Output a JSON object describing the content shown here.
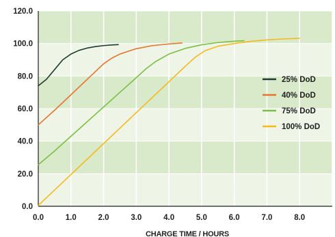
{
  "chart_data": {
    "type": "line",
    "xlabel": "CHARGE TIME / HOURS",
    "ylabel": "",
    "xlim": [
      0,
      9
    ],
    "ylim": [
      0,
      120
    ],
    "x_ticks": [
      "0.0",
      "1.0",
      "2.0",
      "3.0",
      "4.0",
      "5.0",
      "6.0",
      "7.0",
      "8.0"
    ],
    "y_ticks": [
      "0.0",
      "20.0",
      "40.0",
      "60.0",
      "80.0",
      "100.0",
      "120.0"
    ],
    "grid": true,
    "legend_position": "right",
    "series": [
      {
        "name": "25% DoD",
        "color": "#1d3a33",
        "points": [
          [
            0.0,
            74
          ],
          [
            0.25,
            78
          ],
          [
            0.5,
            84
          ],
          [
            0.75,
            90
          ],
          [
            1.0,
            93.5
          ],
          [
            1.25,
            95.8
          ],
          [
            1.5,
            97.2
          ],
          [
            1.75,
            98.1
          ],
          [
            2.0,
            98.7
          ],
          [
            2.25,
            99.1
          ],
          [
            2.45,
            99.3
          ]
        ]
      },
      {
        "name": "40% DoD",
        "color": "#e8732c",
        "points": [
          [
            0.0,
            50
          ],
          [
            0.5,
            59
          ],
          [
            1.0,
            68.5
          ],
          [
            1.5,
            78
          ],
          [
            2.0,
            87.5
          ],
          [
            2.25,
            91
          ],
          [
            2.5,
            93.5
          ],
          [
            3.0,
            96.8
          ],
          [
            3.5,
            98.7
          ],
          [
            4.0,
            99.7
          ],
          [
            4.4,
            100.3
          ]
        ]
      },
      {
        "name": "75% DoD",
        "color": "#7ac043",
        "points": [
          [
            0.0,
            25.5
          ],
          [
            0.5,
            34
          ],
          [
            1.0,
            43
          ],
          [
            1.5,
            52
          ],
          [
            2.0,
            61
          ],
          [
            2.5,
            70
          ],
          [
            3.0,
            79
          ],
          [
            3.3,
            84.5
          ],
          [
            3.6,
            89
          ],
          [
            4.0,
            93.5
          ],
          [
            4.5,
            97
          ],
          [
            5.0,
            99.2
          ],
          [
            5.5,
            100.6
          ],
          [
            6.0,
            101.4
          ],
          [
            6.3,
            101.7
          ]
        ]
      },
      {
        "name": "100% DoD",
        "color": "#f6b81c",
        "points": [
          [
            0.0,
            0.5
          ],
          [
            0.5,
            10
          ],
          [
            1.0,
            19.5
          ],
          [
            1.5,
            29
          ],
          [
            2.0,
            38.5
          ],
          [
            2.5,
            48
          ],
          [
            3.0,
            57.5
          ],
          [
            3.5,
            67
          ],
          [
            4.0,
            76.5
          ],
          [
            4.5,
            86
          ],
          [
            4.8,
            91.5
          ],
          [
            5.1,
            95.5
          ],
          [
            5.5,
            98.3
          ],
          [
            6.0,
            100
          ],
          [
            6.5,
            101.3
          ],
          [
            7.0,
            102.2
          ],
          [
            7.5,
            102.8
          ],
          [
            8.0,
            103.2
          ]
        ]
      }
    ]
  }
}
